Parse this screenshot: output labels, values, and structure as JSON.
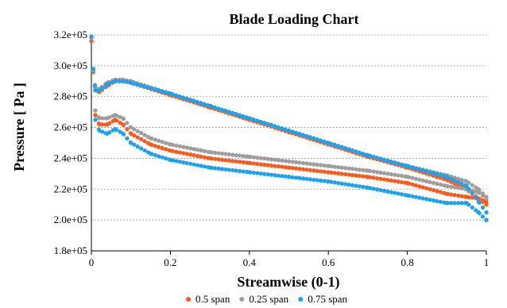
{
  "chart_data": {
    "type": "scatter",
    "title": "Blade Loading Chart",
    "xlabel": "Streamwise (0-1)",
    "ylabel": "Pressure [ Pa ]",
    "xlim": [
      0,
      1
    ],
    "ylim": [
      180000,
      320000
    ],
    "xticks": [
      0,
      0.2,
      0.4,
      0.6,
      0.8,
      1
    ],
    "xtick_labels": [
      "0",
      "0.2",
      "0.4",
      "0.6",
      "0.8",
      "1"
    ],
    "yticks": [
      180000,
      200000,
      220000,
      240000,
      260000,
      280000,
      300000,
      320000
    ],
    "ytick_labels": [
      "1.8e+05",
      "2.0e+05",
      "2.2e+05",
      "2.4e+05",
      "2.6e+05",
      "2.8e+05",
      "3.0e+05",
      "3.2e+05"
    ],
    "grid": true,
    "legend_position": "bottom",
    "series": [
      {
        "name": "0.5 span",
        "color": "#ff5a1a",
        "upper": [
          [
            0,
            316000
          ],
          [
            0.005,
            296000
          ],
          [
            0.01,
            284000
          ],
          [
            0.02,
            283000
          ],
          [
            0.04,
            287000
          ],
          [
            0.06,
            290000
          ],
          [
            0.08,
            290000
          ],
          [
            0.1,
            289000
          ],
          [
            0.2,
            281000
          ],
          [
            0.3,
            273000
          ],
          [
            0.4,
            265000
          ],
          [
            0.5,
            257000
          ],
          [
            0.6,
            249000
          ],
          [
            0.7,
            241000
          ],
          [
            0.8,
            234000
          ],
          [
            0.9,
            226000
          ],
          [
            0.95,
            220000
          ],
          [
            0.98,
            214000
          ],
          [
            1.0,
            212000
          ]
        ],
        "lower": [
          [
            0.01,
            268000
          ],
          [
            0.02,
            262000
          ],
          [
            0.04,
            262000
          ],
          [
            0.06,
            265000
          ],
          [
            0.08,
            262000
          ],
          [
            0.1,
            256000
          ],
          [
            0.15,
            249000
          ],
          [
            0.2,
            245000
          ],
          [
            0.3,
            240000
          ],
          [
            0.4,
            237000
          ],
          [
            0.5,
            234000
          ],
          [
            0.6,
            231000
          ],
          [
            0.7,
            228000
          ],
          [
            0.8,
            224000
          ],
          [
            0.9,
            217000
          ],
          [
            0.95,
            215000
          ],
          [
            0.98,
            214000
          ],
          [
            1.0,
            210000
          ]
        ]
      },
      {
        "name": "0.25 span",
        "color": "#9e9e9e",
        "upper": [
          [
            0,
            318000
          ],
          [
            0.005,
            297000
          ],
          [
            0.01,
            285000
          ],
          [
            0.02,
            285000
          ],
          [
            0.04,
            289000
          ],
          [
            0.06,
            291000
          ],
          [
            0.08,
            291000
          ],
          [
            0.1,
            290000
          ],
          [
            0.2,
            282000
          ],
          [
            0.3,
            274000
          ],
          [
            0.4,
            266000
          ],
          [
            0.5,
            258000
          ],
          [
            0.6,
            250000
          ],
          [
            0.7,
            242000
          ],
          [
            0.8,
            235000
          ],
          [
            0.9,
            229000
          ],
          [
            0.95,
            225000
          ],
          [
            0.98,
            220000
          ],
          [
            1.0,
            215000
          ]
        ],
        "lower": [
          [
            0.01,
            271000
          ],
          [
            0.02,
            266000
          ],
          [
            0.04,
            266000
          ],
          [
            0.06,
            268000
          ],
          [
            0.08,
            266000
          ],
          [
            0.1,
            260000
          ],
          [
            0.15,
            253000
          ],
          [
            0.2,
            249000
          ],
          [
            0.3,
            244000
          ],
          [
            0.4,
            241000
          ],
          [
            0.5,
            238000
          ],
          [
            0.6,
            235000
          ],
          [
            0.7,
            232000
          ],
          [
            0.8,
            228000
          ],
          [
            0.9,
            222000
          ],
          [
            0.95,
            220000
          ],
          [
            0.98,
            218000
          ],
          [
            1.0,
            214000
          ]
        ]
      },
      {
        "name": "0.75 span",
        "color": "#1aa3f0",
        "upper": [
          [
            0,
            319000
          ],
          [
            0.005,
            298000
          ],
          [
            0.01,
            284000
          ],
          [
            0.02,
            284000
          ],
          [
            0.04,
            288000
          ],
          [
            0.06,
            290000
          ],
          [
            0.08,
            290000
          ],
          [
            0.1,
            289000
          ],
          [
            0.2,
            282000
          ],
          [
            0.3,
            274000
          ],
          [
            0.4,
            266000
          ],
          [
            0.5,
            258000
          ],
          [
            0.6,
            250000
          ],
          [
            0.7,
            242000
          ],
          [
            0.8,
            235000
          ],
          [
            0.9,
            228000
          ],
          [
            0.95,
            222000
          ],
          [
            0.98,
            212000
          ],
          [
            1.0,
            205000
          ]
        ],
        "lower": [
          [
            0.01,
            265000
          ],
          [
            0.02,
            258000
          ],
          [
            0.04,
            256000
          ],
          [
            0.06,
            259000
          ],
          [
            0.08,
            256000
          ],
          [
            0.1,
            250000
          ],
          [
            0.15,
            243000
          ],
          [
            0.2,
            239000
          ],
          [
            0.3,
            234000
          ],
          [
            0.4,
            231000
          ],
          [
            0.5,
            228000
          ],
          [
            0.6,
            225000
          ],
          [
            0.7,
            221000
          ],
          [
            0.8,
            216000
          ],
          [
            0.9,
            211000
          ],
          [
            0.95,
            211000
          ],
          [
            0.98,
            205000
          ],
          [
            1.0,
            200000
          ]
        ]
      }
    ]
  }
}
